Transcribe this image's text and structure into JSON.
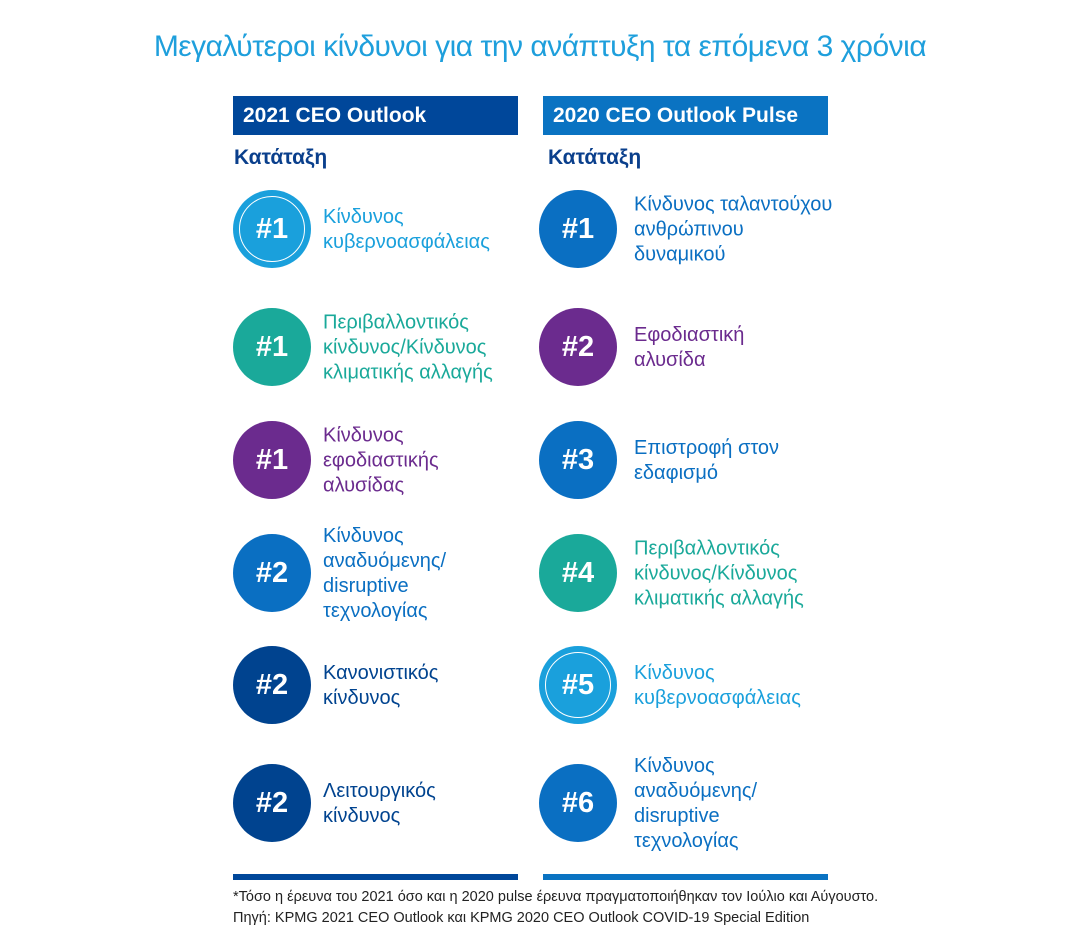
{
  "title": "Μεγαλύτεροι κίνδυνοι για την ανάπτυξη τα επόμενα 3 χρόνια",
  "colors": {
    "light": "#1aa0dc",
    "teal": "#1aa99a",
    "purple": "#6b2b8e",
    "medium": "#0a6fc2",
    "dark": "#00438f"
  },
  "left": {
    "header": "2021 CEO Outlook",
    "rank_label": "Κατάταξη",
    "items": [
      {
        "rank": "#1",
        "text": "Κίνδυνος\nκυβερνοασφάλειας",
        "color": "light"
      },
      {
        "rank": "#1",
        "text": "Περιβαλλοντικός\nκίνδυνος/Κίνδυνος\nκλιματικής αλλαγής",
        "color": "teal"
      },
      {
        "rank": "#1",
        "text": "Κίνδυνος\nεφοδιαστικής\nαλυσίδας",
        "color": "purple"
      },
      {
        "rank": "#2",
        "text": "Κίνδυνος\nαναδυόμενης/\ndisruptive\nτεχνολογίας",
        "color": "medium"
      },
      {
        "rank": "#2",
        "text": "Κανονιστικός\nκίνδυνος",
        "color": "dark"
      },
      {
        "rank": "#2",
        "text": "Λειτουργικός\nκίνδυνος",
        "color": "dark"
      }
    ]
  },
  "right": {
    "header": "2020 CEO Outlook Pulse",
    "rank_label": "Κατάταξη",
    "items": [
      {
        "rank": "#1",
        "text": "Κίνδυνος ταλαντούχου\nανθρώπινου\nδυναμικού",
        "color": "medium"
      },
      {
        "rank": "#2",
        "text": "Εφοδιαστική\nαλυσίδα",
        "color": "purple"
      },
      {
        "rank": "#3",
        "text": "Επιστροφή στον\nεδαφισμό",
        "color": "medium"
      },
      {
        "rank": "#4",
        "text": "Περιβαλλοντικός\nκίνδυνος/Κίνδυνος\nκλιματικής αλλαγής",
        "color": "teal"
      },
      {
        "rank": "#5",
        "text": "Κίνδυνος\nκυβερνοασφάλειας",
        "color": "light"
      },
      {
        "rank": "#6",
        "text": "Κίνδυνος\nαναδυόμενης/\ndisruptive\nτεχνολογίας",
        "color": "medium"
      }
    ]
  },
  "footnote": "*Τόσο η έρευνα του 2021 όσο και η 2020 pulse έρευνα πραγματοποιήθηκαν τον Ιούλιο και Αύγουστο.",
  "source": "Πηγή: KPMG 2021 CEO Outlook και KPMG 2020 CEO Outlook COVID-19 Special Edition"
}
